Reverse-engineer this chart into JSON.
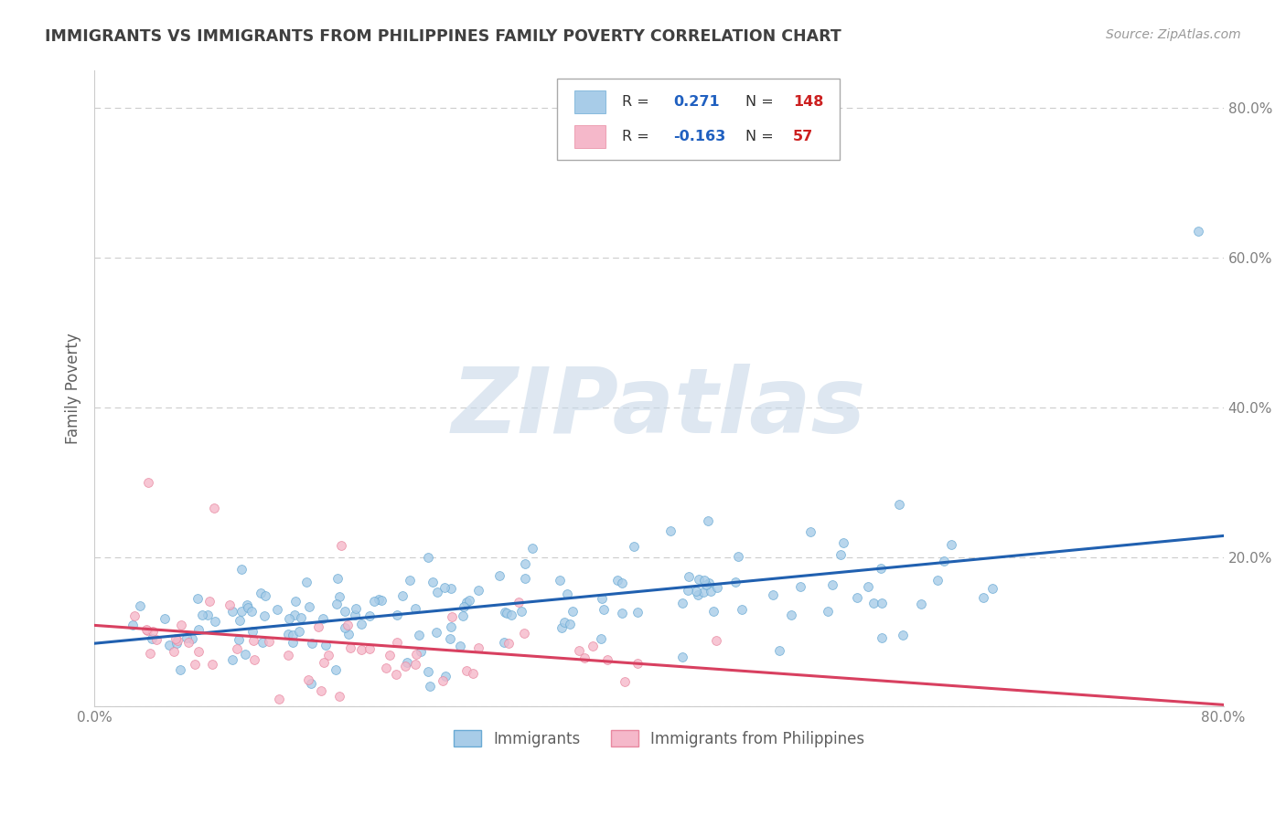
{
  "title": "IMMIGRANTS VS IMMIGRANTS FROM PHILIPPINES FAMILY POVERTY CORRELATION CHART",
  "source_text": "Source: ZipAtlas.com",
  "ylabel": "Family Poverty",
  "xlim": [
    0,
    0.8
  ],
  "ylim": [
    0,
    0.85
  ],
  "xtick_positions": [
    0.0,
    0.1,
    0.2,
    0.3,
    0.4,
    0.5,
    0.6,
    0.7,
    0.8
  ],
  "ytick_positions": [
    0.0,
    0.2,
    0.4,
    0.6,
    0.8
  ],
  "series1_color": "#a8cce8",
  "series1_edge": "#6aaad4",
  "series2_color": "#f5b8ca",
  "series2_edge": "#e888a0",
  "trend1_color": "#2060b0",
  "trend2_color": "#d84060",
  "watermark_color": "#c8d8e8",
  "watermark": "ZIPatlas",
  "legend_label1": "Immigrants",
  "legend_label2": "Immigrants from Philippines",
  "background_color": "#ffffff",
  "grid_color": "#cccccc",
  "title_color": "#404040",
  "axis_label_color": "#606060",
  "tick_label_color": "#808080",
  "r1_val": "0.271",
  "r2_val": "-0.163",
  "n1_val": "148",
  "n2_val": "57",
  "r_color": "#2060c0",
  "n_color": "#cc2020",
  "seed": 99,
  "n1": 148,
  "n2": 57
}
